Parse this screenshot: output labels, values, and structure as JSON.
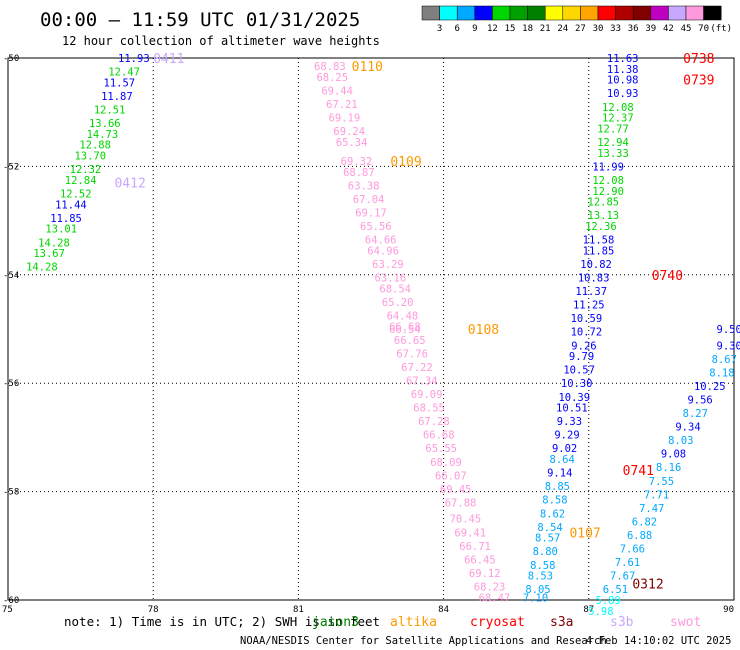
{
  "title": "00:00 – 11:59 UTC 01/31/2025",
  "subtitle": "12 hour collection of altimeter wave heights",
  "colorbar": {
    "labels": [
      "3",
      "6",
      "9",
      "12",
      "15",
      "18",
      "21",
      "24",
      "27",
      "30",
      "33",
      "36",
      "39",
      "42",
      "45",
      "70",
      "(ft)"
    ],
    "colors": [
      "#7f7f7f",
      "#00ffff",
      "#00a8ff",
      "#0000ff",
      "#00d700",
      "#00a000",
      "#008000",
      "#ffff00",
      "#ffd700",
      "#ffa500",
      "#ff0000",
      "#b00000",
      "#800000",
      "#c000c0",
      "#c8a8ff",
      "#ff99dd",
      "#000000"
    ]
  },
  "note": "note: 1) Time is in UTC; 2) SWH is in feet",
  "credit_left": "NOAA/NESDIS Center for Satellite Applications and Research",
  "credit_right": "4 Feb 14:10:02 UTC 2025",
  "satellites": [
    {
      "name": "jason3",
      "color": "#008000"
    },
    {
      "name": "altika",
      "color": "#ff9900"
    },
    {
      "name": "cryosat",
      "color": "#ff0000"
    },
    {
      "name": "s3a",
      "color": "#800000"
    },
    {
      "name": "s3b",
      "color": "#c8a8ff"
    },
    {
      "name": "swot",
      "color": "#ff99dd"
    }
  ],
  "chart_data": {
    "type": "scatter",
    "title": "00:00 – 11:59 UTC 01/31/2025",
    "subtitle": "12 hour collection of altimeter wave heights",
    "xlim": [
      75,
      90
    ],
    "ylim": [
      -60,
      -50
    ],
    "xticks": [
      75,
      78,
      81,
      84,
      87,
      90
    ],
    "yticks": [
      -50,
      -52,
      -54,
      -56,
      -58,
      -60
    ],
    "xtick_labels": [
      "75",
      "78",
      "81",
      "84",
      "87",
      "90"
    ],
    "ytick_labels": [
      "-50",
      "-52",
      "-54",
      "-56",
      "-58",
      "-60"
    ],
    "grid": true,
    "units": "ft",
    "passes": [
      {
        "label": "0411",
        "lon": 78.0,
        "lat": -50.0,
        "color": "#c8a8ff"
      },
      {
        "label": "0412",
        "lon": 77.2,
        "lat": -52.3,
        "color": "#c8a8ff"
      },
      {
        "label": "0110",
        "lon": 82.1,
        "lat": -50.15,
        "color": "#ff9900"
      },
      {
        "label": "0109",
        "lon": 82.9,
        "lat": -51.9,
        "color": "#ff9900"
      },
      {
        "label": "0108",
        "lon": 84.5,
        "lat": -55.0,
        "color": "#ff9900"
      },
      {
        "label": "0107",
        "lon": 86.6,
        "lat": -58.75,
        "color": "#ff9900"
      },
      {
        "label": "0738",
        "lon": 88.95,
        "lat": -50.0,
        "color": "#ff0000"
      },
      {
        "label": "0739",
        "lon": 88.95,
        "lat": -50.4,
        "color": "#ff0000"
      },
      {
        "label": "0740",
        "lon": 88.3,
        "lat": -54.0,
        "color": "#ff0000"
      },
      {
        "label": "0741",
        "lon": 87.7,
        "lat": -57.6,
        "color": "#ff0000"
      },
      {
        "label": "0312",
        "lon": 87.9,
        "lat": -59.7,
        "color": "#800000"
      }
    ],
    "series": [
      {
        "name": "0411/0412",
        "points": [
          {
            "lon": 77.6,
            "lat": -50.0,
            "value": 11.93
          },
          {
            "lon": 77.4,
            "lat": -50.25,
            "value": 12.47
          },
          {
            "lon": 77.3,
            "lat": -50.45,
            "value": 11.57
          },
          {
            "lon": 77.25,
            "lat": -50.7,
            "value": 11.87
          },
          {
            "lon": 77.1,
            "lat": -50.95,
            "value": 12.51
          },
          {
            "lon": 77.0,
            "lat": -51.2,
            "value": 13.66
          },
          {
            "lon": 76.95,
            "lat": -51.4,
            "value": 14.73
          },
          {
            "lon": 76.8,
            "lat": -51.6,
            "value": 12.88
          },
          {
            "lon": 76.7,
            "lat": -51.8,
            "value": 13.7
          },
          {
            "lon": 76.6,
            "lat": -52.05,
            "value": 12.32
          },
          {
            "lon": 76.5,
            "lat": -52.25,
            "value": 12.84
          },
          {
            "lon": 76.4,
            "lat": -52.5,
            "value": 12.52
          },
          {
            "lon": 76.3,
            "lat": -52.7,
            "value": 11.44
          },
          {
            "lon": 76.2,
            "lat": -52.95,
            "value": 11.85
          },
          {
            "lon": 76.1,
            "lat": -53.15,
            "value": 13.01
          },
          {
            "lon": 75.95,
            "lat": -53.4,
            "value": 14.28
          },
          {
            "lon": 75.85,
            "lat": -53.6,
            "value": 13.67
          },
          {
            "lon": 75.7,
            "lat": -53.85,
            "value": 14.28
          }
        ]
      },
      {
        "name": "0110-0107",
        "points": [
          {
            "lon": 81.65,
            "lat": -50.15,
            "value": 68.83
          },
          {
            "lon": 81.7,
            "lat": -50.35,
            "value": 68.25
          },
          {
            "lon": 81.8,
            "lat": -50.6,
            "value": 69.44
          },
          {
            "lon": 81.9,
            "lat": -50.85,
            "value": 67.21
          },
          {
            "lon": 81.95,
            "lat": -51.1,
            "value": 69.19
          },
          {
            "lon": 82.05,
            "lat": -51.35,
            "value": 69.24
          },
          {
            "lon": 82.1,
            "lat": -51.55,
            "value": 65.34
          },
          {
            "lon": 82.2,
            "lat": -51.9,
            "value": 69.32
          },
          {
            "lon": 82.25,
            "lat": -52.1,
            "value": 68.87
          },
          {
            "lon": 82.35,
            "lat": -52.35,
            "value": 63.38
          },
          {
            "lon": 82.45,
            "lat": -52.6,
            "value": 67.04
          },
          {
            "lon": 82.5,
            "lat": -52.85,
            "value": 69.17
          },
          {
            "lon": 82.6,
            "lat": -53.1,
            "value": 65.56
          },
          {
            "lon": 82.7,
            "lat": -53.35,
            "value": 64.66
          },
          {
            "lon": 82.75,
            "lat": -53.55,
            "value": 64.96
          },
          {
            "lon": 82.85,
            "lat": -53.8,
            "value": 63.29
          },
          {
            "lon": 82.9,
            "lat": -54.05,
            "value": 63.16
          },
          {
            "lon": 83.0,
            "lat": -54.25,
            "value": 68.54
          },
          {
            "lon": 83.05,
            "lat": -54.5,
            "value": 65.2
          },
          {
            "lon": 83.15,
            "lat": -54.75,
            "value": 64.48
          },
          {
            "lon": 83.2,
            "lat": -54.95,
            "value": 66.68
          },
          {
            "lon": 83.2,
            "lat": -55.0,
            "value": 66.54
          },
          {
            "lon": 83.3,
            "lat": -55.2,
            "value": 66.65
          },
          {
            "lon": 83.35,
            "lat": -55.45,
            "value": 67.76
          },
          {
            "lon": 83.45,
            "lat": -55.7,
            "value": 67.22
          },
          {
            "lon": 83.55,
            "lat": -55.95,
            "value": 67.34
          },
          {
            "lon": 83.65,
            "lat": -56.2,
            "value": 69.09
          },
          {
            "lon": 83.7,
            "lat": -56.45,
            "value": 68.55
          },
          {
            "lon": 83.8,
            "lat": -56.7,
            "value": 67.28
          },
          {
            "lon": 83.9,
            "lat": -56.95,
            "value": 66.68
          },
          {
            "lon": 83.95,
            "lat": -57.2,
            "value": 65.55
          },
          {
            "lon": 84.05,
            "lat": -57.45,
            "value": 68.09
          },
          {
            "lon": 84.15,
            "lat": -57.7,
            "value": 66.07
          },
          {
            "lon": 84.25,
            "lat": -57.95,
            "value": 69.45
          },
          {
            "lon": 84.35,
            "lat": -58.2,
            "value": 67.88
          },
          {
            "lon": 84.45,
            "lat": -58.5,
            "value": 70.45
          },
          {
            "lon": 84.55,
            "lat": -58.75,
            "value": 69.41
          },
          {
            "lon": 84.65,
            "lat": -59.0,
            "value": 66.71
          },
          {
            "lon": 84.75,
            "lat": -59.25,
            "value": 66.45
          },
          {
            "lon": 84.85,
            "lat": -59.5,
            "value": 69.12
          },
          {
            "lon": 84.95,
            "lat": -59.75,
            "value": 68.23
          },
          {
            "lon": 85.05,
            "lat": -59.95,
            "value": 68.47
          }
        ]
      },
      {
        "name": "0738-0741",
        "points": [
          {
            "lon": 87.7,
            "lat": -50.0,
            "value": 11.63
          },
          {
            "lon": 87.7,
            "lat": -50.2,
            "value": 11.38
          },
          {
            "lon": 87.7,
            "lat": -50.4,
            "value": 10.98
          },
          {
            "lon": 87.7,
            "lat": -50.65,
            "value": 10.93
          },
          {
            "lon": 87.6,
            "lat": -50.9,
            "value": 12.08
          },
          {
            "lon": 87.6,
            "lat": -51.1,
            "value": 12.37
          },
          {
            "lon": 87.5,
            "lat": -51.3,
            "value": 12.77
          },
          {
            "lon": 87.5,
            "lat": -51.55,
            "value": 12.94
          },
          {
            "lon": 87.5,
            "lat": -51.75,
            "value": 13.33
          },
          {
            "lon": 87.4,
            "lat": -52.0,
            "value": 11.99
          },
          {
            "lon": 87.4,
            "lat": -52.25,
            "value": 12.08
          },
          {
            "lon": 87.4,
            "lat": -52.45,
            "value": 12.9
          },
          {
            "lon": 87.3,
            "lat": -52.65,
            "value": 12.85
          },
          {
            "lon": 87.3,
            "lat": -52.9,
            "value": 13.13
          },
          {
            "lon": 87.25,
            "lat": -53.1,
            "value": 12.36
          },
          {
            "lon": 87.2,
            "lat": -53.35,
            "value": 11.58
          },
          {
            "lon": 87.2,
            "lat": -53.55,
            "value": 11.85
          },
          {
            "lon": 87.15,
            "lat": -53.8,
            "value": 10.82
          },
          {
            "lon": 87.1,
            "lat": -54.05,
            "value": 10.83
          },
          {
            "lon": 87.05,
            "lat": -54.3,
            "value": 11.37
          },
          {
            "lon": 87.0,
            "lat": -54.55,
            "value": 11.25
          },
          {
            "lon": 86.95,
            "lat": -54.8,
            "value": 10.59
          },
          {
            "lon": 86.95,
            "lat": -55.05,
            "value": 10.72
          },
          {
            "lon": 86.9,
            "lat": -55.3,
            "value": 9.26
          },
          {
            "lon": 86.85,
            "lat": -55.5,
            "value": 9.79
          },
          {
            "lon": 86.8,
            "lat": -55.75,
            "value": 10.57
          },
          {
            "lon": 86.75,
            "lat": -56.0,
            "value": 10.3
          },
          {
            "lon": 86.7,
            "lat": -56.25,
            "value": 10.39
          },
          {
            "lon": 86.65,
            "lat": -56.45,
            "value": 10.51
          },
          {
            "lon": 86.6,
            "lat": -56.7,
            "value": 9.33
          },
          {
            "lon": 86.55,
            "lat": -56.95,
            "value": 9.29
          },
          {
            "lon": 86.5,
            "lat": -57.2,
            "value": 9.02
          },
          {
            "lon": 86.45,
            "lat": -57.4,
            "value": 8.64
          },
          {
            "lon": 86.4,
            "lat": -57.65,
            "value": 9.14
          },
          {
            "lon": 86.35,
            "lat": -57.9,
            "value": 8.85
          },
          {
            "lon": 86.3,
            "lat": -58.15,
            "value": 8.58
          },
          {
            "lon": 86.25,
            "lat": -58.4,
            "value": 8.62
          },
          {
            "lon": 86.2,
            "lat": -58.65,
            "value": 8.54
          },
          {
            "lon": 86.15,
            "lat": -58.85,
            "value": 8.57
          },
          {
            "lon": 86.1,
            "lat": -59.1,
            "value": 8.8
          },
          {
            "lon": 86.05,
            "lat": -59.35,
            "value": 8.58
          },
          {
            "lon": 86.0,
            "lat": -59.55,
            "value": 8.53
          },
          {
            "lon": 85.95,
            "lat": -59.8,
            "value": 8.05
          },
          {
            "lon": 85.9,
            "lat": -59.95,
            "value": 7.1
          }
        ]
      },
      {
        "name": "0312",
        "points": [
          {
            "lon": 89.9,
            "lat": -55.0,
            "value": 9.5
          },
          {
            "lon": 89.9,
            "lat": -55.3,
            "value": 9.3
          },
          {
            "lon": 89.8,
            "lat": -55.55,
            "value": 8.67
          },
          {
            "lon": 89.75,
            "lat": -55.8,
            "value": 8.18
          },
          {
            "lon": 89.5,
            "lat": -56.05,
            "value": 10.25
          },
          {
            "lon": 89.3,
            "lat": -56.3,
            "value": 9.56
          },
          {
            "lon": 89.2,
            "lat": -56.55,
            "value": 8.27
          },
          {
            "lon": 89.05,
            "lat": -56.8,
            "value": 9.34
          },
          {
            "lon": 88.9,
            "lat": -57.05,
            "value": 8.03
          },
          {
            "lon": 88.75,
            "lat": -57.3,
            "value": 9.08
          },
          {
            "lon": 88.65,
            "lat": -57.55,
            "value": 8.16
          },
          {
            "lon": 88.5,
            "lat": -57.8,
            "value": 7.55
          },
          {
            "lon": 88.4,
            "lat": -58.05,
            "value": 7.71
          },
          {
            "lon": 88.3,
            "lat": -58.3,
            "value": 7.47
          },
          {
            "lon": 88.15,
            "lat": -58.55,
            "value": 6.82
          },
          {
            "lon": 88.05,
            "lat": -58.8,
            "value": 6.88
          },
          {
            "lon": 87.9,
            "lat": -59.05,
            "value": 7.66
          },
          {
            "lon": 87.8,
            "lat": -59.3,
            "value": 7.61
          },
          {
            "lon": 87.7,
            "lat": -59.55,
            "value": 7.67
          },
          {
            "lon": 87.55,
            "lat": -59.8,
            "value": 6.51
          },
          {
            "lon": 87.4,
            "lat": -60.0,
            "value": 5.89
          },
          {
            "lon": 87.25,
            "lat": -60.2,
            "value": 5.98
          }
        ]
      }
    ]
  }
}
